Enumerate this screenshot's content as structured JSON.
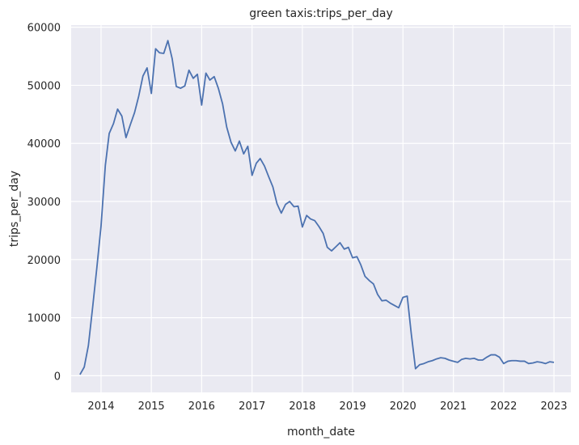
{
  "chart_data": {
    "type": "line",
    "title": "green taxis:trips_per_day",
    "xlabel": "month_date",
    "ylabel": "trips_per_day",
    "xlim": [
      "2013-05-29",
      "2023-05-04"
    ],
    "ylim": [
      -2870,
      60370
    ],
    "grid": true,
    "legend": "none",
    "colors": {
      "background": "#eaeaf2",
      "grid": "#ffffff",
      "line": "#4c72b0",
      "text": "#262626"
    },
    "x_ticks": [
      "2014-01-01",
      "2015-01-01",
      "2016-01-01",
      "2017-01-01",
      "2018-01-01",
      "2019-01-01",
      "2020-01-01",
      "2021-01-01",
      "2022-01-01",
      "2023-01-01"
    ],
    "x_tick_labels": [
      "2014",
      "2015",
      "2016",
      "2017",
      "2018",
      "2019",
      "2020",
      "2021",
      "2022",
      "2023"
    ],
    "y_ticks": [
      0,
      10000,
      20000,
      30000,
      40000,
      50000,
      60000
    ],
    "y_tick_labels": [
      "0",
      "10000",
      "20000",
      "30000",
      "40000",
      "50000",
      "60000"
    ],
    "series": [
      {
        "x": [
          "2013-08-01",
          "2013-09-01",
          "2013-10-01",
          "2013-11-01",
          "2013-12-01",
          "2014-01-01",
          "2014-02-01",
          "2014-03-01",
          "2014-04-01",
          "2014-05-01",
          "2014-06-01",
          "2014-07-01",
          "2014-08-01",
          "2014-09-01",
          "2014-10-01",
          "2014-11-01",
          "2014-12-01",
          "2015-01-01",
          "2015-02-01",
          "2015-03-01",
          "2015-04-01",
          "2015-05-01",
          "2015-06-01",
          "2015-07-01",
          "2015-08-01",
          "2015-09-01",
          "2015-10-01",
          "2015-11-01",
          "2015-12-01",
          "2016-01-01",
          "2016-02-01",
          "2016-03-01",
          "2016-04-01",
          "2016-05-01",
          "2016-06-01",
          "2016-07-01",
          "2016-08-01",
          "2016-09-01",
          "2016-10-01",
          "2016-11-01",
          "2016-12-01",
          "2017-01-01",
          "2017-02-01",
          "2017-03-01",
          "2017-04-01",
          "2017-05-01",
          "2017-06-01",
          "2017-07-01",
          "2017-08-01",
          "2017-09-01",
          "2017-10-01",
          "2017-11-01",
          "2017-12-01",
          "2018-01-01",
          "2018-02-01",
          "2018-03-01",
          "2018-04-01",
          "2018-05-01",
          "2018-06-01",
          "2018-07-01",
          "2018-08-01",
          "2018-09-01",
          "2018-10-01",
          "2018-11-01",
          "2018-12-01",
          "2019-01-01",
          "2019-02-01",
          "2019-03-01",
          "2019-04-01",
          "2019-05-01",
          "2019-06-01",
          "2019-07-01",
          "2019-08-01",
          "2019-09-01",
          "2019-10-01",
          "2019-11-01",
          "2019-12-01",
          "2020-01-01",
          "2020-02-01",
          "2020-03-01",
          "2020-04-01",
          "2020-05-01",
          "2020-06-01",
          "2020-07-01",
          "2020-08-01",
          "2020-09-01",
          "2020-10-01",
          "2020-11-01",
          "2020-12-01",
          "2021-01-01",
          "2021-02-01",
          "2021-03-01",
          "2021-04-01",
          "2021-05-01",
          "2021-06-01",
          "2021-07-01",
          "2021-08-01",
          "2021-09-01",
          "2021-10-01",
          "2021-11-01",
          "2021-12-01",
          "2022-01-01",
          "2022-02-01",
          "2022-03-01",
          "2022-04-01",
          "2022-05-01",
          "2022-06-01",
          "2022-07-01",
          "2022-08-01",
          "2022-09-01",
          "2022-10-01",
          "2022-11-01",
          "2022-12-01",
          "2023-01-01"
        ],
        "values": [
          200,
          1500,
          5200,
          11800,
          18500,
          25800,
          36200,
          41700,
          43400,
          45900,
          44700,
          41000,
          43200,
          45300,
          48100,
          51600,
          53000,
          48600,
          56300,
          55600,
          55500,
          57700,
          54600,
          49800,
          49500,
          49900,
          52600,
          51200,
          51900,
          46600,
          52100,
          50900,
          51500,
          49500,
          46800,
          42800,
          40200,
          38700,
          40400,
          38200,
          39500,
          34500,
          36600,
          37400,
          36100,
          34300,
          32500,
          29600,
          28000,
          29500,
          30000,
          29100,
          29200,
          25600,
          27600,
          27000,
          26700,
          25700,
          24500,
          22100,
          21500,
          22200,
          22900,
          21800,
          22100,
          20300,
          20500,
          19100,
          17100,
          16400,
          15800,
          14000,
          12900,
          13000,
          12500,
          12100,
          11700,
          13500,
          13700,
          7300,
          1200,
          1900,
          2100,
          2400,
          2600,
          2900,
          3100,
          3000,
          2700,
          2500,
          2300,
          2800,
          3000,
          2900,
          3000,
          2700,
          2700,
          3200,
          3600,
          3600,
          3200,
          2100,
          2500,
          2600,
          2600,
          2500,
          2500,
          2100,
          2200,
          2400,
          2300,
          2100,
          2400,
          2300
        ]
      }
    ]
  }
}
